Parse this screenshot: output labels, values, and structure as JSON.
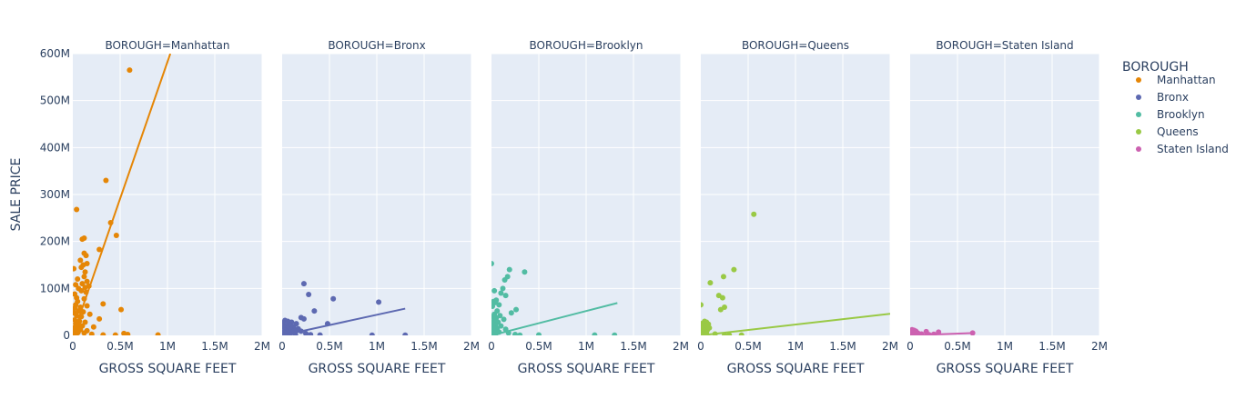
{
  "chart_data": {
    "type": "scatter",
    "xlabel": "GROSS SQUARE FEET",
    "ylabel": "SALE PRICE",
    "xlim": [
      0,
      2000000
    ],
    "ylim": [
      0,
      600000000
    ],
    "x_ticks": [
      0,
      500000,
      1000000,
      1500000,
      2000000
    ],
    "x_tick_labels": [
      "0",
      "0.5M",
      "1M",
      "1.5M",
      "2M"
    ],
    "y_ticks": [
      0,
      100000000,
      200000000,
      300000000,
      400000000,
      500000000,
      600000000
    ],
    "y_tick_labels": [
      "0",
      "100M",
      "200M",
      "300M",
      "400M",
      "500M",
      "600M"
    ],
    "grid": true,
    "legend": {
      "title": "BOROUGH",
      "placement": "right"
    },
    "series": [
      {
        "name": "Manhattan",
        "facet_title": "BOROUGH=Manhattan",
        "color": "#e58606",
        "trendline": [
          [
            0,
            0
          ],
          [
            1030000,
            600000000
          ]
        ],
        "points": [
          [
            600000,
            565000000
          ],
          [
            350000,
            330000000
          ],
          [
            40000,
            268000000
          ],
          [
            400000,
            240000000
          ],
          [
            460000,
            213000000
          ],
          [
            120000,
            207000000
          ],
          [
            100000,
            205000000
          ],
          [
            280000,
            183000000
          ],
          [
            120000,
            175000000
          ],
          [
            140000,
            170000000
          ],
          [
            80000,
            160000000
          ],
          [
            150000,
            153000000
          ],
          [
            110000,
            150000000
          ],
          [
            90000,
            145000000
          ],
          [
            10000,
            142000000
          ],
          [
            130000,
            135000000
          ],
          [
            120000,
            125000000
          ],
          [
            50000,
            120000000
          ],
          [
            150000,
            115000000
          ],
          [
            100000,
            110000000
          ],
          [
            30000,
            108000000
          ],
          [
            170000,
            105000000
          ],
          [
            130000,
            102000000
          ],
          [
            60000,
            100000000
          ],
          [
            90000,
            95000000
          ],
          [
            140000,
            92000000
          ],
          [
            20000,
            88000000
          ],
          [
            40000,
            80000000
          ],
          [
            120000,
            78000000
          ],
          [
            50000,
            72000000
          ],
          [
            320000,
            67000000
          ],
          [
            30000,
            65000000
          ],
          [
            150000,
            63000000
          ],
          [
            80000,
            60000000
          ],
          [
            20000,
            58000000
          ],
          [
            510000,
            55000000
          ],
          [
            60000,
            52000000
          ],
          [
            110000,
            50000000
          ],
          [
            10000,
            48000000
          ],
          [
            180000,
            45000000
          ],
          [
            40000,
            42000000
          ],
          [
            90000,
            40000000
          ],
          [
            280000,
            35000000
          ],
          [
            20000,
            33000000
          ],
          [
            70000,
            30000000
          ],
          [
            130000,
            28000000
          ],
          [
            30000,
            25000000
          ],
          [
            60000,
            22000000
          ],
          [
            100000,
            20000000
          ],
          [
            220000,
            18000000
          ],
          [
            15000,
            16000000
          ],
          [
            45000,
            14000000
          ],
          [
            80000,
            12000000
          ],
          [
            150000,
            10000000
          ],
          [
            25000,
            8000000
          ],
          [
            55000,
            6000000
          ],
          [
            120000,
            5000000
          ],
          [
            540000,
            4000000
          ],
          [
            580000,
            2000000
          ],
          [
            900000,
            1000000
          ],
          [
            10000,
            3000000
          ],
          [
            35000,
            1500000
          ],
          [
            200000,
            2500000
          ],
          [
            320000,
            1000000
          ],
          [
            450000,
            800000
          ],
          [
            5000,
            900000
          ]
        ]
      },
      {
        "name": "Bronx",
        "facet_title": "BOROUGH=Bronx",
        "color": "#5d69b1",
        "trendline": [
          [
            0,
            0
          ],
          [
            1300000,
            57000000
          ]
        ],
        "points": [
          [
            230000,
            110000000
          ],
          [
            1020000,
            71000000
          ],
          [
            540000,
            78000000
          ],
          [
            280000,
            87000000
          ],
          [
            340000,
            52000000
          ],
          [
            200000,
            38000000
          ],
          [
            230000,
            35000000
          ],
          [
            480000,
            25000000
          ],
          [
            30000,
            32000000
          ],
          [
            60000,
            30000000
          ],
          [
            100000,
            28000000
          ],
          [
            10000,
            27000000
          ],
          [
            150000,
            25000000
          ],
          [
            80000,
            22000000
          ],
          [
            40000,
            20000000
          ],
          [
            120000,
            18000000
          ],
          [
            20000,
            17000000
          ],
          [
            60000,
            15000000
          ],
          [
            170000,
            14000000
          ],
          [
            90000,
            12000000
          ],
          [
            30000,
            11000000
          ],
          [
            130000,
            10000000
          ],
          [
            200000,
            9000000
          ],
          [
            50000,
            8000000
          ],
          [
            15000,
            7000000
          ],
          [
            100000,
            6000000
          ],
          [
            70000,
            5000000
          ],
          [
            250000,
            4000000
          ],
          [
            5000,
            3000000
          ],
          [
            40000,
            2500000
          ],
          [
            140000,
            2000000
          ],
          [
            300000,
            1500000
          ],
          [
            20000,
            1000000
          ],
          [
            950000,
            500000
          ],
          [
            1300000,
            500000
          ],
          [
            400000,
            800000
          ],
          [
            80000,
            700000
          ]
        ]
      },
      {
        "name": "Brooklyn",
        "facet_title": "BOROUGH=Brooklyn",
        "color": "#52bca3",
        "trendline": [
          [
            0,
            0
          ],
          [
            1330000,
            69000000
          ]
        ],
        "points": [
          [
            0,
            153000000
          ],
          [
            190000,
            140000000
          ],
          [
            350000,
            135000000
          ],
          [
            170000,
            125000000
          ],
          [
            140000,
            118000000
          ],
          [
            120000,
            100000000
          ],
          [
            30000,
            95000000
          ],
          [
            100000,
            90000000
          ],
          [
            150000,
            85000000
          ],
          [
            50000,
            75000000
          ],
          [
            20000,
            72000000
          ],
          [
            40000,
            70000000
          ],
          [
            80000,
            65000000
          ],
          [
            10000,
            62000000
          ],
          [
            260000,
            55000000
          ],
          [
            60000,
            52000000
          ],
          [
            210000,
            48000000
          ],
          [
            30000,
            45000000
          ],
          [
            90000,
            42000000
          ],
          [
            15000,
            40000000
          ],
          [
            50000,
            37000000
          ],
          [
            130000,
            34000000
          ],
          [
            25000,
            31000000
          ],
          [
            70000,
            28000000
          ],
          [
            10000,
            25000000
          ],
          [
            40000,
            22000000
          ],
          [
            100000,
            20000000
          ],
          [
            20000,
            18000000
          ],
          [
            60000,
            15000000
          ],
          [
            150000,
            13000000
          ],
          [
            5000,
            11000000
          ],
          [
            35000,
            9000000
          ],
          [
            80000,
            7000000
          ],
          [
            180000,
            5000000
          ],
          [
            12000,
            4000000
          ],
          [
            45000,
            3000000
          ],
          [
            250000,
            2000000
          ],
          [
            1090000,
            800000
          ],
          [
            1300000,
            500000
          ],
          [
            300000,
            600000
          ],
          [
            500000,
            900000
          ],
          [
            8000,
            1000000
          ]
        ]
      },
      {
        "name": "Queens",
        "facet_title": "BOROUGH=Queens",
        "color": "#99c945",
        "trendline": [
          [
            0,
            0
          ],
          [
            2000000,
            46000000
          ]
        ],
        "points": [
          [
            560000,
            258000000
          ],
          [
            350000,
            140000000
          ],
          [
            240000,
            125000000
          ],
          [
            100000,
            112000000
          ],
          [
            190000,
            85000000
          ],
          [
            230000,
            80000000
          ],
          [
            0,
            65000000
          ],
          [
            250000,
            60000000
          ],
          [
            210000,
            55000000
          ],
          [
            40000,
            30000000
          ],
          [
            60000,
            28000000
          ],
          [
            20000,
            26000000
          ],
          [
            80000,
            24000000
          ],
          [
            10000,
            22000000
          ],
          [
            50000,
            20000000
          ],
          [
            30000,
            18000000
          ],
          [
            90000,
            16000000
          ],
          [
            15000,
            14000000
          ],
          [
            70000,
            12000000
          ],
          [
            40000,
            10000000
          ],
          [
            25000,
            8000000
          ],
          [
            60000,
            6000000
          ],
          [
            10000,
            5000000
          ],
          [
            35000,
            4000000
          ],
          [
            5000,
            3000000
          ],
          [
            20000,
            2000000
          ],
          [
            150000,
            3000000
          ],
          [
            300000,
            1000000
          ],
          [
            430000,
            800000
          ],
          [
            250000,
            500000
          ]
        ]
      },
      {
        "name": "Staten Island",
        "facet_title": "BOROUGH=Staten Island",
        "color": "#cc61b0",
        "trendline": [
          [
            0,
            0
          ],
          [
            680000,
            5000000
          ]
        ],
        "points": [
          [
            20000,
            12000000
          ],
          [
            40000,
            11000000
          ],
          [
            10000,
            10000000
          ],
          [
            60000,
            9000000
          ],
          [
            170000,
            8000000
          ],
          [
            300000,
            7000000
          ],
          [
            30000,
            6000000
          ],
          [
            80000,
            5000000
          ],
          [
            660000,
            5000000
          ],
          [
            50000,
            4000000
          ],
          [
            120000,
            3000000
          ],
          [
            250000,
            2500000
          ],
          [
            15000,
            2000000
          ],
          [
            200000,
            1500000
          ],
          [
            100000,
            1000000
          ],
          [
            5000,
            800000
          ]
        ]
      }
    ]
  }
}
